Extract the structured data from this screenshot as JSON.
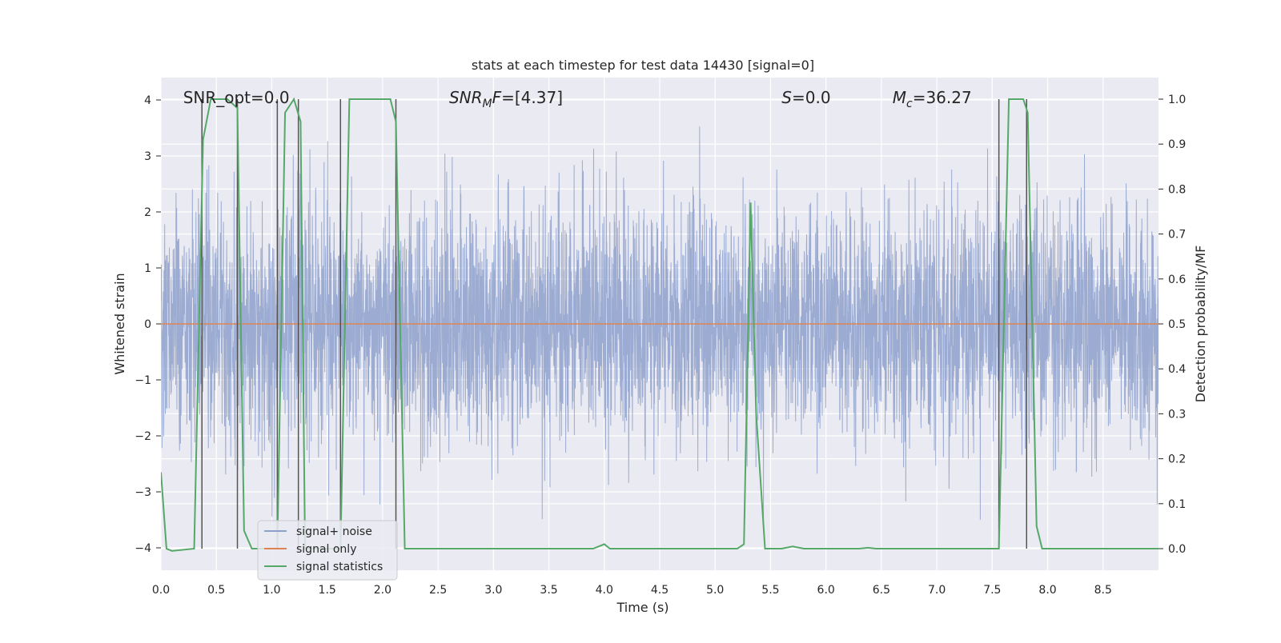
{
  "chart_data": {
    "type": "line",
    "title": "stats at each timestep for test data 14430 [signal=0]",
    "xlabel": "Time (s)",
    "ylabel_left": "Whitened strain",
    "ylabel_right": "Detection probability/MF",
    "xlim": [
      0.0,
      9.0
    ],
    "ylim_left": [
      -4.4,
      4.4
    ],
    "ylim_right": [
      -0.048,
      1.048
    ],
    "x_ticks": [
      "0.0",
      "0.5",
      "1.0",
      "1.5",
      "2.0",
      "2.5",
      "3.0",
      "3.5",
      "4.0",
      "4.5",
      "5.0",
      "5.5",
      "6.0",
      "6.5",
      "7.0",
      "7.5",
      "8.0",
      "8.5"
    ],
    "y_left_ticks": [
      "−4",
      "−3",
      "−2",
      "−1",
      "0",
      "1",
      "2",
      "3",
      "4"
    ],
    "y_right_ticks": [
      "0.0",
      "0.1",
      "0.2",
      "0.3",
      "0.4",
      "0.5",
      "0.6",
      "0.7",
      "0.8",
      "0.9",
      "1.0"
    ],
    "grid": true,
    "legend_position": "lower-left",
    "series": [
      {
        "name": "signal+ noise",
        "color": "#8da0cb",
        "axis": "left",
        "description": "whitened noisy strain, fluctuates roughly between -3.6 and 3.6 over 0-9 s",
        "sample_rate": 500,
        "seed": 14430
      },
      {
        "name": "signal only",
        "color": "#dd8452",
        "axis": "left",
        "x": [
          0.0,
          9.0
        ],
        "y": [
          0.0,
          0.0
        ]
      },
      {
        "name": "signal statistics",
        "color": "#55a868",
        "axis": "right",
        "x": [
          0.0,
          0.05,
          0.1,
          0.3,
          0.38,
          0.45,
          0.6,
          0.69,
          0.75,
          0.82,
          1.0,
          1.05,
          1.12,
          1.2,
          1.26,
          1.3,
          1.55,
          1.62,
          1.7,
          2.07,
          2.12,
          2.2,
          3.9,
          4.0,
          4.05,
          5.2,
          5.26,
          5.32,
          5.37,
          5.45,
          5.6,
          5.7,
          5.8,
          6.3,
          6.38,
          6.45,
          7.5,
          7.56,
          7.65,
          7.78,
          7.82,
          7.9,
          7.95,
          9.0
        ],
        "y": [
          0.17,
          0.0,
          -0.005,
          0.0,
          0.91,
          1.0,
          1.0,
          0.98,
          0.04,
          0.0,
          0.0,
          0.0,
          0.97,
          1.0,
          0.95,
          0.0,
          0.0,
          0.0,
          1.0,
          1.0,
          0.95,
          0.0,
          0.0,
          0.01,
          0.0,
          0.0,
          0.01,
          0.77,
          0.3,
          0.0,
          0.0,
          0.005,
          0.0,
          0.0,
          0.002,
          0.0,
          0.0,
          0.0,
          1.0,
          1.0,
          0.97,
          0.05,
          0.0,
          0.0
        ]
      }
    ],
    "detection_lines_x": [
      0.37,
      0.69,
      1.05,
      1.24,
      1.62,
      2.12,
      7.56,
      7.81
    ],
    "annotations": [
      {
        "text": "SNR_opt=0.0",
        "x": 0.2,
        "side": "left"
      },
      {
        "text": "SNR_MF=[4.37]",
        "x": 2.6,
        "side": "left"
      },
      {
        "text": "S=0.0",
        "x": 5.6,
        "side": "left"
      },
      {
        "text": "M_c=36.27",
        "x": 6.6,
        "side": "left"
      }
    ]
  }
}
